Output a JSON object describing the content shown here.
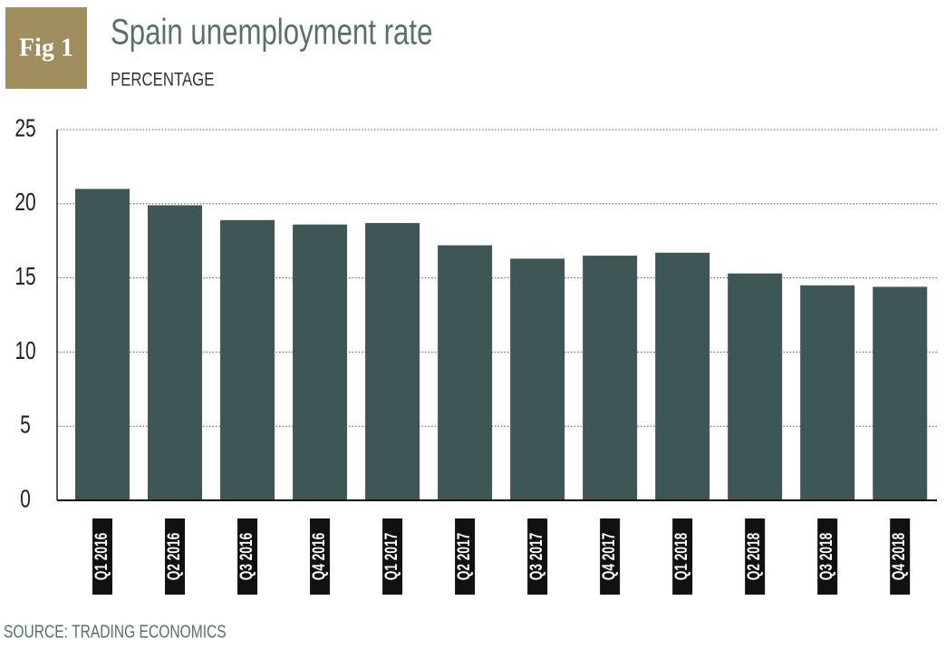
{
  "chart_data": {
    "type": "bar",
    "figure_label": "Fig 1",
    "title": "Spain unemployment rate",
    "subtitle": "PERCENTAGE",
    "source": "SOURCE: TRADING ECONOMICS",
    "categories": [
      "Q1 2016",
      "Q2 2016",
      "Q3 2016",
      "Q4 2016",
      "Q1 2017",
      "Q2 2017",
      "Q3 2017",
      "Q4 2017",
      "Q1 2018",
      "Q2 2018",
      "Q3 2018",
      "Q4 2018"
    ],
    "values": [
      21.0,
      19.9,
      18.9,
      18.6,
      18.7,
      17.2,
      16.3,
      16.5,
      16.7,
      15.3,
      14.5,
      14.4
    ],
    "color": "#3e5655",
    "ylim": [
      0,
      25
    ],
    "yticks": [
      0,
      5,
      10,
      15,
      20,
      25
    ],
    "grid": true
  }
}
